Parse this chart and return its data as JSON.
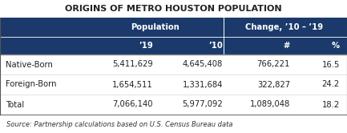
{
  "title": "ORIGINS OF METRO HOUSTON POPULATION",
  "header_bg": "#1b3a6b",
  "header_text_color": "#ffffff",
  "body_bg": "#ffffff",
  "body_text_color": "#222222",
  "source_text": "Source: Partnership calculations based on U.S. Census Bureau data",
  "col_headers_row1_labels": [
    "Population",
    "Change, ’10 – ’19"
  ],
  "col_headers_row2": [
    "’19",
    "’10",
    "#",
    "%"
  ],
  "rows": [
    [
      "Native-Born",
      "5,411,629",
      "4,645,408",
      "766,221",
      "16.5"
    ],
    [
      "Foreign-Born",
      "1,654,511",
      "1,331,684",
      "322,827",
      "24.2"
    ],
    [
      "Total",
      "7,066,140",
      "5,977,092",
      "1,089,048",
      "18.2"
    ]
  ],
  "figsize": [
    4.33,
    1.66
  ],
  "dpi": 100,
  "title_fontsize": 8.0,
  "header_fontsize": 7.2,
  "data_fontsize": 7.2,
  "source_fontsize": 6.0
}
